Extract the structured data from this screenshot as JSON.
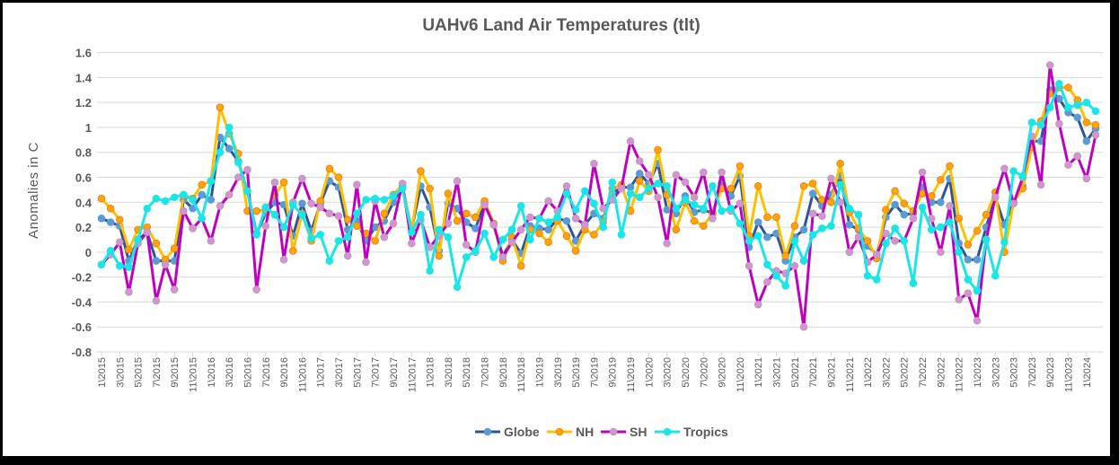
{
  "chart_data": {
    "type": "line",
    "title": "UAHv6 Land Air Temperatures (tlt)",
    "xlabel": "",
    "ylabel": "Anomalies in C",
    "ylim": [
      -0.8,
      1.6
    ],
    "yticks": [
      "1.6",
      "1.4",
      "1.2",
      "1",
      "0.8",
      "0.6",
      "0.4",
      "0.2",
      "0",
      "-0.2",
      "-0.4",
      "-0.6",
      "-0.8"
    ],
    "grid": true,
    "legend_position": "bottom",
    "x_start": "1\\2015",
    "x_end": "2\\2024",
    "xtick_labels": [
      "1\\2015",
      "3\\2015",
      "5\\2015",
      "7\\2015",
      "9\\2015",
      "11\\2015",
      "1\\2016",
      "3\\2016",
      "5\\2016",
      "7\\2016",
      "9\\2016",
      "11\\2016",
      "1\\2017",
      "3\\2017",
      "5\\2017",
      "7\\2017",
      "9\\2017",
      "11\\2017",
      "1\\2018",
      "3\\2018",
      "5\\2018",
      "7\\2018",
      "9\\2018",
      "11\\2018",
      "1\\2019",
      "3\\2019",
      "5\\2019",
      "7\\2019",
      "9\\2019",
      "11\\2019",
      "1\\2020",
      "3\\2020",
      "5\\2020",
      "7\\2020",
      "9\\2020",
      "11\\2020",
      "1\\2021",
      "3\\2021",
      "5\\2021",
      "7\\2021",
      "9\\2021",
      "11\\2021",
      "1\\2022",
      "3\\2022",
      "5\\2022",
      "7\\2022",
      "9\\2022",
      "11\\2022",
      "1\\2023",
      "3\\2023",
      "5\\2023",
      "7\\2023",
      "9\\2023",
      "11\\2023",
      "1\\2024"
    ],
    "series": [
      {
        "name": "Globe",
        "line_color": "#2F5597",
        "marker_color": "#5B9BD5",
        "marker_edge": "#5B9BD5",
        "values": [
          0.27,
          0.24,
          0.21,
          -0.07,
          0.1,
          0.16,
          -0.07,
          -0.07,
          -0.07,
          0.42,
          0.35,
          0.46,
          0.42,
          0.92,
          0.83,
          0.73,
          0.49,
          0.15,
          0.31,
          0.4,
          0.38,
          0.13,
          0.39,
          0.17,
          0.39,
          0.57,
          0.52,
          0.18,
          0.25,
          0.09,
          0.2,
          0.25,
          0.4,
          0.53,
          0.18,
          0.53,
          0.36,
          0.01,
          0.39,
          0.35,
          0.24,
          0.19,
          0.39,
          0.22,
          -0.03,
          0.1,
          -0.01,
          0.21,
          0.19,
          0.18,
          0.27,
          0.25,
          0.09,
          0.22,
          0.31,
          0.27,
          0.47,
          0.52,
          0.52,
          0.63,
          0.55,
          0.71,
          0.34,
          0.31,
          0.45,
          0.32,
          0.34,
          0.31,
          0.55,
          0.45,
          0.61,
          0.04,
          0.24,
          0.12,
          0.15,
          -0.07,
          0.12,
          0.18,
          0.47,
          0.37,
          0.46,
          0.61,
          0.22,
          0.18,
          0.05,
          -0.02,
          0.28,
          0.38,
          0.3,
          0.31,
          0.52,
          0.4,
          0.4,
          0.59,
          0.07,
          -0.06,
          -0.06,
          0.2,
          0.44,
          0.22,
          0.4,
          0.53,
          0.89,
          0.89,
          1.3,
          1.23,
          1.12,
          1.08,
          0.89,
          0.99
        ]
      },
      {
        "name": "NH",
        "line_color": "#FFC000",
        "marker_color": "#FFA500",
        "marker_edge": "#F08020",
        "values": [
          0.43,
          0.35,
          0.26,
          0.02,
          0.18,
          0.2,
          0.07,
          -0.06,
          0.03,
          0.45,
          0.43,
          0.54,
          0.57,
          1.16,
          0.95,
          0.79,
          0.33,
          0.33,
          0.34,
          0.46,
          0.56,
          0.01,
          0.31,
          0.09,
          0.41,
          0.67,
          0.6,
          0.26,
          0.21,
          0.15,
          0.09,
          0.31,
          0.46,
          0.54,
          0.17,
          0.65,
          0.51,
          -0.03,
          0.47,
          0.25,
          0.31,
          0.28,
          0.41,
          0.23,
          -0.07,
          0.12,
          -0.11,
          0.18,
          0.15,
          0.08,
          0.25,
          0.13,
          0.01,
          0.18,
          0.14,
          0.24,
          0.51,
          0.54,
          0.33,
          0.57,
          0.49,
          0.82,
          0.46,
          0.18,
          0.4,
          0.25,
          0.21,
          0.31,
          0.51,
          0.51,
          0.69,
          0.13,
          0.53,
          0.28,
          0.28,
          -0.03,
          0.21,
          0.53,
          0.55,
          0.42,
          0.4,
          0.71,
          0.32,
          0.19,
          0.09,
          -0.05,
          0.34,
          0.49,
          0.39,
          0.33,
          0.47,
          0.45,
          0.58,
          0.69,
          0.27,
          0.06,
          0.17,
          0.3,
          0.48,
          0.0,
          0.4,
          0.51,
          0.84,
          1.05,
          1.27,
          1.32,
          1.32,
          1.22,
          1.04,
          1.02
        ]
      },
      {
        "name": "SH",
        "line_color": "#C000C0",
        "marker_color": "#DA8FD6",
        "marker_edge": "#B0A0B0",
        "values": [
          -0.1,
          -0.02,
          0.08,
          -0.32,
          0.07,
          0.16,
          -0.39,
          -0.1,
          -0.3,
          0.33,
          0.19,
          0.27,
          0.09,
          0.37,
          0.46,
          0.6,
          0.66,
          -0.3,
          0.21,
          0.56,
          -0.06,
          0.4,
          0.59,
          0.39,
          0.36,
          0.31,
          0.29,
          -0.03,
          0.54,
          -0.08,
          0.41,
          0.12,
          0.23,
          0.55,
          0.07,
          0.26,
          0.04,
          0.13,
          0.23,
          0.57,
          0.06,
          0.0,
          0.38,
          0.22,
          -0.04,
          0.08,
          0.18,
          0.28,
          0.27,
          0.41,
          0.33,
          0.53,
          0.27,
          0.22,
          0.71,
          0.35,
          0.42,
          0.51,
          0.89,
          0.73,
          0.62,
          0.44,
          0.07,
          0.62,
          0.56,
          0.44,
          0.64,
          0.27,
          0.64,
          0.33,
          0.39,
          -0.11,
          -0.42,
          -0.24,
          -0.15,
          -0.17,
          -0.11,
          -0.6,
          0.31,
          0.29,
          0.59,
          0.4,
          0.0,
          0.12,
          -0.08,
          -0.02,
          0.15,
          0.09,
          0.09,
          0.27,
          0.64,
          0.27,
          0.0,
          0.37,
          -0.38,
          -0.33,
          -0.55,
          0.1,
          0.44,
          0.67,
          0.39,
          0.6,
          0.93,
          0.54,
          1.5,
          1.03,
          0.7,
          0.77,
          0.59,
          0.94
        ]
      },
      {
        "name": "Tropics",
        "line_color": "#19E6E6",
        "marker_color": "#19E6E6",
        "marker_edge": "#19E6E6",
        "values": [
          -0.1,
          0.01,
          -0.11,
          -0.12,
          0.1,
          0.35,
          0.43,
          0.41,
          0.44,
          0.46,
          0.42,
          0.27,
          0.57,
          0.8,
          1.0,
          0.72,
          0.49,
          0.14,
          0.36,
          0.3,
          0.2,
          0.38,
          0.3,
          0.11,
          0.14,
          -0.07,
          0.09,
          0.12,
          0.31,
          0.42,
          0.43,
          0.42,
          0.45,
          0.51,
          0.16,
          0.3,
          -0.15,
          0.18,
          0.12,
          -0.28,
          -0.04,
          0.01,
          0.15,
          -0.04,
          0.1,
          0.18,
          0.37,
          0.1,
          0.27,
          0.24,
          0.28,
          0.47,
          0.34,
          0.49,
          0.39,
          0.2,
          0.56,
          0.14,
          0.47,
          0.44,
          0.51,
          0.55,
          0.53,
          0.35,
          0.42,
          0.38,
          0.35,
          0.53,
          0.33,
          0.35,
          0.23,
          0.09,
          0.13,
          -0.1,
          -0.19,
          -0.27,
          0.09,
          -0.07,
          0.14,
          0.19,
          0.21,
          0.54,
          0.35,
          0.3,
          -0.19,
          -0.22,
          0.07,
          0.19,
          0.09,
          -0.25,
          0.36,
          0.18,
          0.2,
          0.24,
          0.0,
          -0.22,
          -0.31,
          0.1,
          -0.19,
          0.08,
          0.65,
          0.61,
          1.04,
          1.02,
          1.16,
          1.35,
          1.16,
          1.18,
          1.2,
          1.13
        ]
      }
    ]
  }
}
